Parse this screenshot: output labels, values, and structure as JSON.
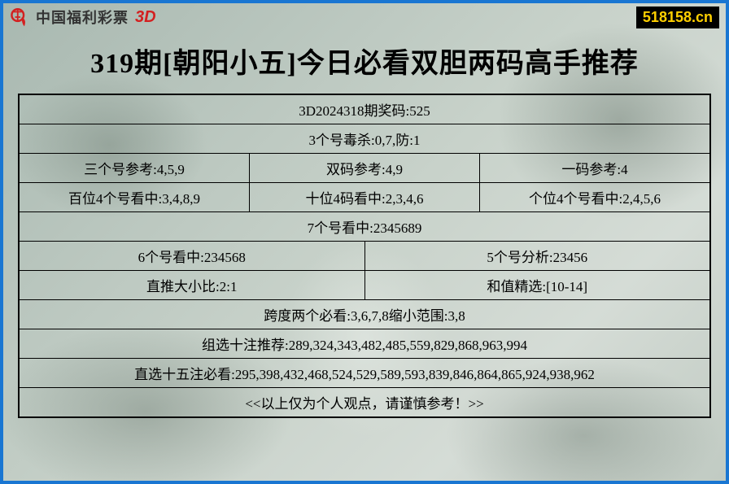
{
  "header": {
    "logo_text": "中国福利彩票",
    "logo_3d": "3D",
    "site_badge": "518158.cn"
  },
  "title": "319期[朝阳小五]今日必看双胆两码高手推荐",
  "table": {
    "rows": [
      {
        "cells": [
          "3D2024318期奖码:525"
        ]
      },
      {
        "cells": [
          "3个号毒杀:0,7,防:1"
        ]
      },
      {
        "cells": [
          "三个号参考:4,5,9",
          "双码参考:4,9",
          "一码参考:4"
        ]
      },
      {
        "cells": [
          "百位4个号看中:3,4,8,9",
          "十位4码看中:2,3,4,6",
          "个位4个号看中:2,4,5,6"
        ]
      },
      {
        "cells": [
          "7个号看中:2345689"
        ]
      },
      {
        "cells": [
          "6个号看中:234568",
          "5个号分析:23456"
        ]
      },
      {
        "cells": [
          "直推大小比:2:1",
          "和值精选:[10-14]"
        ]
      },
      {
        "cells": [
          "跨度两个必看:3,6,7,8缩小范围:3,8"
        ]
      },
      {
        "cells": [
          "组选十注推荐:289,324,343,482,485,559,829,868,963,994"
        ]
      },
      {
        "cells": [
          "直选十五注必看:295,398,432,468,524,529,589,593,839,846,864,865,924,938,962"
        ]
      },
      {
        "cells": [
          "<<以上仅为个人观点，请谨慎参考！>>"
        ]
      }
    ]
  },
  "colors": {
    "frame": "#1976d2",
    "logo_red": "#d32020",
    "badge_bg": "#000000",
    "badge_fg": "#ffd000",
    "text": "#000000"
  }
}
